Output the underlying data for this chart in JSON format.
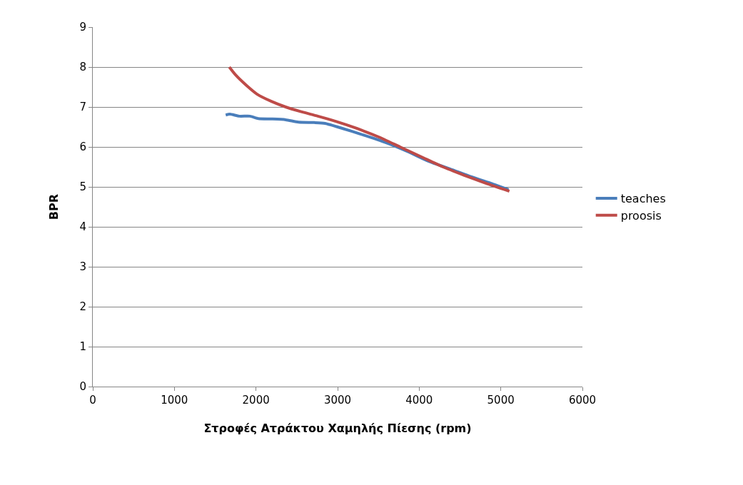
{
  "chart_data": {
    "type": "line",
    "xlabel": "Στροφές Ατράκτου Χαμηλής Πίεσης (rpm)",
    "ylabel": "BPR",
    "xlim": [
      0,
      6000
    ],
    "xticks": [
      0,
      1000,
      2000,
      3000,
      4000,
      5000,
      6000
    ],
    "ylim": [
      0,
      9
    ],
    "yticks": [
      0,
      1,
      2,
      3,
      4,
      5,
      6,
      7,
      8,
      9
    ],
    "grid": "y",
    "legend": "right",
    "marker": "none",
    "line_style": "solid",
    "series": [
      {
        "name": "teaches",
        "color": "#4a7ebb",
        "x": [
          1629,
          1680,
          1795,
          1926,
          2030,
          2190,
          2364,
          2522,
          2715,
          2846,
          3065,
          3284,
          3590,
          3853,
          4116,
          4378,
          4641,
          4904,
          5096
        ],
        "values": [
          6.8,
          6.82,
          6.77,
          6.77,
          6.71,
          6.7,
          6.68,
          6.62,
          6.61,
          6.59,
          6.46,
          6.32,
          6.11,
          5.89,
          5.64,
          5.45,
          5.25,
          5.07,
          4.93
        ]
      },
      {
        "name": "proosis",
        "color": "#be4b48",
        "x": [
          1673,
          1751,
          1883,
          2014,
          2189,
          2364,
          2539,
          2758,
          2977,
          3240,
          3503,
          3765,
          4028,
          4291,
          4553,
          4816,
          5105
        ],
        "values": [
          8.0,
          7.8,
          7.54,
          7.32,
          7.14,
          7.0,
          6.89,
          6.77,
          6.64,
          6.46,
          6.25,
          6.0,
          5.75,
          5.5,
          5.29,
          5.09,
          4.89
        ]
      }
    ]
  }
}
